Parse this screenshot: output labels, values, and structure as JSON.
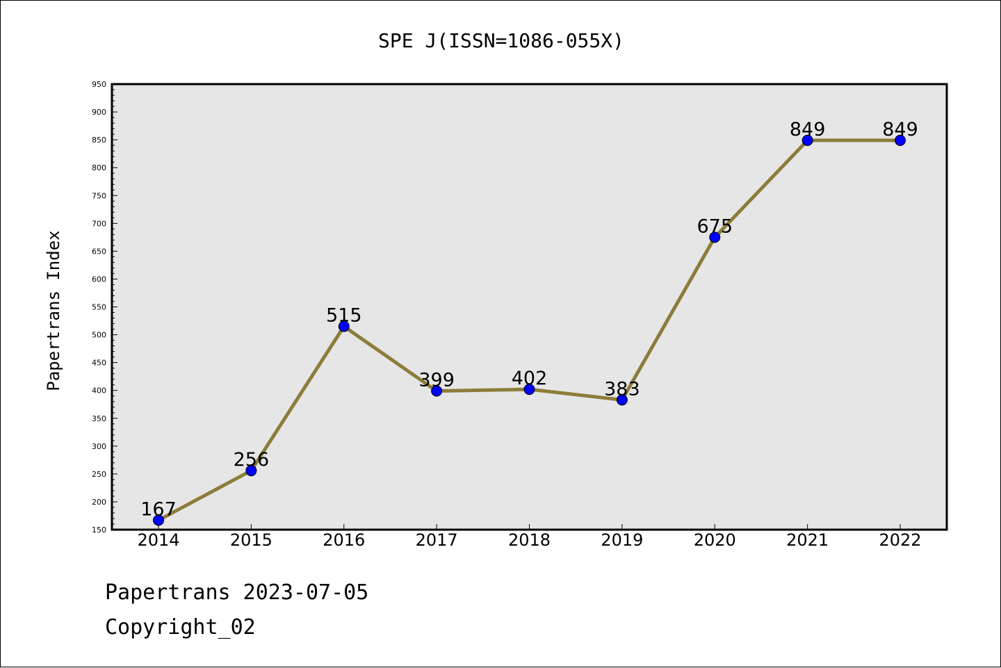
{
  "chart_data": {
    "type": "line",
    "title": "SPE J(ISSN=1086-055X)",
    "xlabel": "",
    "ylabel": "Papertrans Index",
    "categories": [
      "2014",
      "2015",
      "2016",
      "2017",
      "2018",
      "2019",
      "2020",
      "2021",
      "2022"
    ],
    "series": [
      {
        "values": [
          167,
          256,
          515,
          399,
          402,
          383,
          675,
          849,
          849
        ]
      }
    ],
    "data_labels": [
      "167",
      "256",
      "515",
      "399",
      "402",
      "383",
      "675",
      "849",
      "849"
    ],
    "ylim": [
      150,
      950
    ],
    "y_ticks": [
      150,
      200,
      250,
      300,
      350,
      400,
      450,
      500,
      550,
      600,
      650,
      700,
      750,
      800,
      850,
      900,
      950
    ],
    "grid": false,
    "legend": "none",
    "colors": {
      "line": "#8B7D3A",
      "marker": "#0000FF",
      "plot_background": "#E6E6E6"
    }
  },
  "footer": {
    "line1": "Papertrans 2023-07-05",
    "line2": "Copyright_02"
  }
}
